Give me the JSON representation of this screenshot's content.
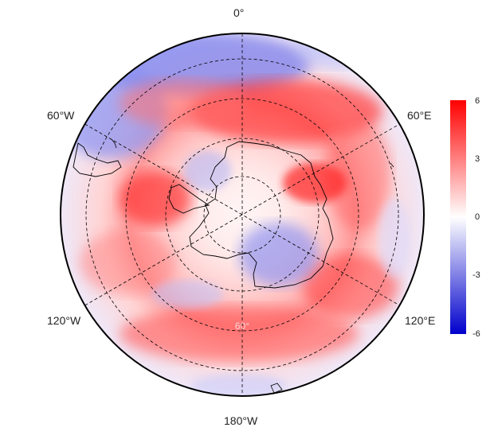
{
  "map": {
    "projection": "south-polar-stereographic",
    "meridian_labels": {
      "top": "0°",
      "upper_left": "60°W",
      "upper_right": "60°E",
      "lower_left": "120°W",
      "lower_right": "120°E",
      "bottom": "180°W"
    },
    "parallel_label": "60°",
    "colorbar": {
      "ticks": [
        "6",
        "3",
        "0",
        "-3",
        "-6"
      ],
      "range": [
        -6,
        6
      ],
      "colors": {
        "high": "#ff0000",
        "mid": "#ffffff",
        "low": "#0000cc"
      }
    }
  }
}
